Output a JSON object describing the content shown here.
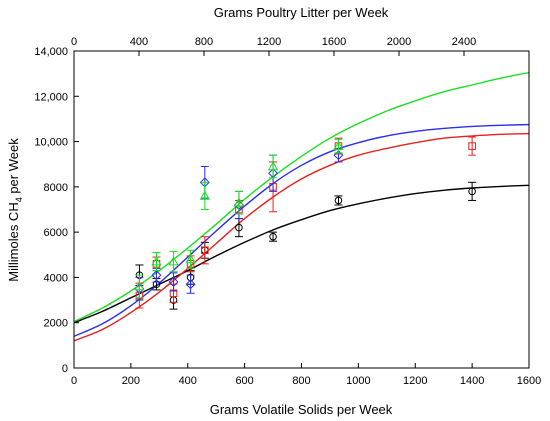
{
  "chart_data": {
    "type": "scatter",
    "xlabel": "Grams Volatile Solids per Week",
    "top_xlabel": "Grams Poultry Litter per Week",
    "ylabel_prefix": "Millimoles CH",
    "ylabel_sub": "4",
    "ylabel_suffix": " per Week",
    "xlim": [
      0,
      1600
    ],
    "ylim": [
      0,
      14000
    ],
    "top_xlim": [
      0,
      2800
    ],
    "x_ticks": [
      0,
      200,
      400,
      600,
      800,
      1000,
      1200,
      1400,
      1600
    ],
    "y_ticks": [
      0,
      2000,
      4000,
      6000,
      8000,
      10000,
      12000,
      14000
    ],
    "top_x_ticks": [
      0,
      400,
      800,
      1200,
      1600,
      2000,
      2400
    ],
    "x_tick_labels": [
      "0",
      "200",
      "400",
      "600",
      "800",
      "1000",
      "1200",
      "1400",
      "1600"
    ],
    "y_tick_labels": [
      "0",
      "2000",
      "4000",
      "6000",
      "8000",
      "10,000",
      "12,000",
      "14,000"
    ],
    "top_x_tick_labels": [
      "0",
      "400",
      "800",
      "1200",
      "1600",
      "2000",
      "2400"
    ],
    "series": [
      {
        "color": "#000000",
        "marker": "circle",
        "points": [
          {
            "x": 230,
            "y": 4100,
            "err": 450
          },
          {
            "x": 290,
            "y": 3700,
            "err": 250
          },
          {
            "x": 350,
            "y": 3000,
            "err": 400
          },
          {
            "x": 410,
            "y": 4000,
            "err": 300
          },
          {
            "x": 460,
            "y": 5200,
            "err": 350
          },
          {
            "x": 580,
            "y": 6200,
            "err": 400
          },
          {
            "x": 700,
            "y": 5800,
            "err": 200
          },
          {
            "x": 930,
            "y": 7400,
            "err": 200
          },
          {
            "x": 1400,
            "y": 7800,
            "err": 400
          }
        ],
        "curve": [
          {
            "x": 0,
            "y": 2000
          },
          {
            "x": 100,
            "y": 2500
          },
          {
            "x": 200,
            "y": 3100
          },
          {
            "x": 300,
            "y": 3700
          },
          {
            "x": 400,
            "y": 4300
          },
          {
            "x": 500,
            "y": 4950
          },
          {
            "x": 600,
            "y": 5550
          },
          {
            "x": 700,
            "y": 6100
          },
          {
            "x": 800,
            "y": 6550
          },
          {
            "x": 900,
            "y": 6950
          },
          {
            "x": 1000,
            "y": 7250
          },
          {
            "x": 1100,
            "y": 7500
          },
          {
            "x": 1200,
            "y": 7700
          },
          {
            "x": 1300,
            "y": 7850
          },
          {
            "x": 1400,
            "y": 7950
          },
          {
            "x": 1500,
            "y": 8020
          },
          {
            "x": 1600,
            "y": 8070
          }
        ]
      },
      {
        "color": "#e8211d",
        "marker": "square",
        "points": [
          {
            "x": 230,
            "y": 3200,
            "err": 550
          },
          {
            "x": 290,
            "y": 4600,
            "err": 300
          },
          {
            "x": 350,
            "y": 3300,
            "err": 400
          },
          {
            "x": 410,
            "y": 4600,
            "err": 350
          },
          {
            "x": 460,
            "y": 5200,
            "err": 600
          },
          {
            "x": 580,
            "y": 7000,
            "err": 400
          },
          {
            "x": 700,
            "y": 8000,
            "err": 1100
          },
          {
            "x": 930,
            "y": 9800,
            "err": 350
          },
          {
            "x": 1400,
            "y": 9800,
            "err": 400
          }
        ],
        "curve": [
          {
            "x": 0,
            "y": 1200
          },
          {
            "x": 100,
            "y": 1700
          },
          {
            "x": 200,
            "y": 2450
          },
          {
            "x": 300,
            "y": 3350
          },
          {
            "x": 400,
            "y": 4400
          },
          {
            "x": 500,
            "y": 5500
          },
          {
            "x": 600,
            "y": 6600
          },
          {
            "x": 700,
            "y": 7550
          },
          {
            "x": 800,
            "y": 8350
          },
          {
            "x": 900,
            "y": 8950
          },
          {
            "x": 1000,
            "y": 9400
          },
          {
            "x": 1100,
            "y": 9700
          },
          {
            "x": 1200,
            "y": 9950
          },
          {
            "x": 1300,
            "y": 10150
          },
          {
            "x": 1400,
            "y": 10250
          },
          {
            "x": 1500,
            "y": 10320
          },
          {
            "x": 1600,
            "y": 10350
          }
        ]
      },
      {
        "color": "#2b2ef0",
        "marker": "diamond",
        "points": [
          {
            "x": 230,
            "y": 3500,
            "err": 500
          },
          {
            "x": 290,
            "y": 4100,
            "err": 300
          },
          {
            "x": 350,
            "y": 3800,
            "err": 400
          },
          {
            "x": 410,
            "y": 3700,
            "err": 400
          },
          {
            "x": 460,
            "y": 8200,
            "err": 700
          },
          {
            "x": 580,
            "y": 7200,
            "err": 600
          },
          {
            "x": 700,
            "y": 8600,
            "err": 800
          },
          {
            "x": 930,
            "y": 9400,
            "err": 300
          }
        ],
        "curve": [
          {
            "x": 0,
            "y": 1400
          },
          {
            "x": 100,
            "y": 1950
          },
          {
            "x": 200,
            "y": 2750
          },
          {
            "x": 300,
            "y": 3750
          },
          {
            "x": 400,
            "y": 4900
          },
          {
            "x": 500,
            "y": 6050
          },
          {
            "x": 600,
            "y": 7150
          },
          {
            "x": 700,
            "y": 8150
          },
          {
            "x": 800,
            "y": 8950
          },
          {
            "x": 900,
            "y": 9550
          },
          {
            "x": 1000,
            "y": 9950
          },
          {
            "x": 1100,
            "y": 10250
          },
          {
            "x": 1200,
            "y": 10450
          },
          {
            "x": 1300,
            "y": 10580
          },
          {
            "x": 1400,
            "y": 10670
          },
          {
            "x": 1500,
            "y": 10720
          },
          {
            "x": 1600,
            "y": 10750
          }
        ]
      },
      {
        "color": "#19e01f",
        "marker": "triangle",
        "points": [
          {
            "x": 230,
            "y": 3600,
            "err": 500
          },
          {
            "x": 290,
            "y": 4700,
            "err": 400
          },
          {
            "x": 350,
            "y": 4700,
            "err": 450
          },
          {
            "x": 410,
            "y": 4800,
            "err": 400
          },
          {
            "x": 460,
            "y": 7600,
            "err": 600
          },
          {
            "x": 580,
            "y": 7300,
            "err": 500
          },
          {
            "x": 700,
            "y": 8900,
            "err": 500
          },
          {
            "x": 930,
            "y": 9800,
            "err": 300
          }
        ],
        "curve": [
          {
            "x": 0,
            "y": 2050
          },
          {
            "x": 100,
            "y": 2650
          },
          {
            "x": 200,
            "y": 3400
          },
          {
            "x": 300,
            "y": 4300
          },
          {
            "x": 400,
            "y": 5300
          },
          {
            "x": 500,
            "y": 6350
          },
          {
            "x": 600,
            "y": 7450
          },
          {
            "x": 700,
            "y": 8450
          },
          {
            "x": 800,
            "y": 9350
          },
          {
            "x": 900,
            "y": 10150
          },
          {
            "x": 1000,
            "y": 10800
          },
          {
            "x": 1100,
            "y": 11350
          },
          {
            "x": 1200,
            "y": 11800
          },
          {
            "x": 1300,
            "y": 12200
          },
          {
            "x": 1400,
            "y": 12500
          },
          {
            "x": 1500,
            "y": 12800
          },
          {
            "x": 1600,
            "y": 13050
          }
        ]
      }
    ]
  }
}
